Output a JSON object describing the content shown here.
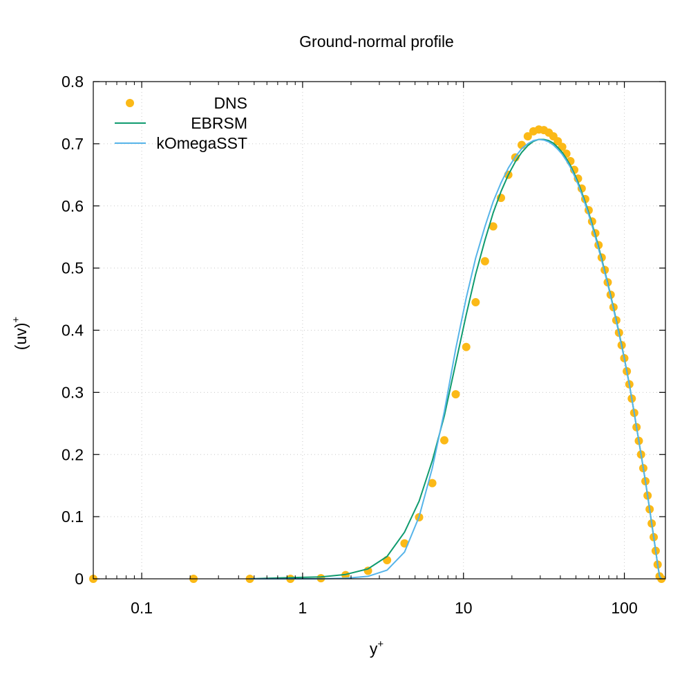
{
  "chart_data": {
    "type": "line",
    "title": "Ground-normal profile",
    "xlabel": "y",
    "xlabel_sup": "+",
    "ylabel": "(uv)",
    "ylabel_sup": "+",
    "x_scale": "log",
    "xlim": [
      0.05,
      180
    ],
    "ylim": [
      0,
      0.8
    ],
    "grid": true,
    "legend_position": "top-left",
    "x_major_ticks": [
      {
        "value": 0.1,
        "label": "0.1"
      },
      {
        "value": 1,
        "label": "1"
      },
      {
        "value": 10,
        "label": "10"
      },
      {
        "value": 100,
        "label": "100"
      }
    ],
    "y_ticks": [
      {
        "value": 0,
        "label": "0"
      },
      {
        "value": 0.1,
        "label": "0.1"
      },
      {
        "value": 0.2,
        "label": "0.2"
      },
      {
        "value": 0.3,
        "label": "0.3"
      },
      {
        "value": 0.4,
        "label": "0.4"
      },
      {
        "value": 0.5,
        "label": "0.5"
      },
      {
        "value": 0.6,
        "label": "0.6"
      },
      {
        "value": 0.7,
        "label": "0.7"
      },
      {
        "value": 0.8,
        "label": "0.8"
      }
    ],
    "series": [
      {
        "name": "DNS",
        "style": "points",
        "color": "#fbb917",
        "x": [
          0.05,
          0.21,
          0.47,
          0.84,
          1.3,
          1.85,
          2.55,
          3.35,
          4.3,
          5.3,
          6.4,
          7.6,
          8.95,
          10.4,
          11.9,
          13.6,
          15.3,
          17.1,
          19.0,
          21.0,
          23.0,
          25.1,
          27.2,
          29.4,
          31.6,
          33.9,
          36.2,
          38.6,
          41.1,
          43.6,
          46.2,
          48.8,
          51.5,
          54.3,
          57.1,
          60.0,
          63.0,
          66.0,
          69.1,
          72.3,
          75.5,
          78.8,
          82.2,
          85.6,
          89.1,
          92.6,
          96.2,
          99.9,
          103.6,
          107.4,
          111.2,
          115.1,
          119.0,
          123.0,
          127.0,
          131.1,
          135.2,
          139.4,
          143.6,
          147.9,
          152.2,
          156.6,
          161.0,
          165.5,
          170.0
        ],
        "y": [
          0.0,
          0.0,
          0.0,
          0.0,
          0.001,
          0.006,
          0.013,
          0.03,
          0.057,
          0.099,
          0.154,
          0.223,
          0.297,
          0.373,
          0.445,
          0.511,
          0.567,
          0.613,
          0.65,
          0.678,
          0.698,
          0.712,
          0.72,
          0.723,
          0.722,
          0.718,
          0.712,
          0.704,
          0.695,
          0.684,
          0.672,
          0.658,
          0.644,
          0.628,
          0.611,
          0.593,
          0.575,
          0.556,
          0.537,
          0.517,
          0.497,
          0.477,
          0.457,
          0.437,
          0.416,
          0.396,
          0.376,
          0.355,
          0.334,
          0.313,
          0.29,
          0.267,
          0.244,
          0.222,
          0.2,
          0.178,
          0.157,
          0.134,
          0.112,
          0.089,
          0.067,
          0.045,
          0.023,
          0.004,
          0.0
        ]
      },
      {
        "name": "EBRSM",
        "style": "line",
        "color": "#0f9b6e",
        "x": [
          0.47,
          0.84,
          1.3,
          1.85,
          2.55,
          3.35,
          4.3,
          5.3,
          6.4,
          7.6,
          8.95,
          10.4,
          11.9,
          13.6,
          15.3,
          17.1,
          19.0,
          21.0,
          23.0,
          25.1,
          27.2,
          29.4,
          31.6,
          33.9,
          36.2,
          38.6,
          41.1,
          43.6,
          46.2,
          48.8,
          51.5,
          54.3,
          57.1,
          60.0,
          63.0,
          66.0,
          69.1,
          72.3,
          75.5,
          78.8,
          82.2,
          85.6,
          89.1,
          92.6,
          96.2,
          99.9,
          103.6,
          107.4,
          111.2,
          115.1,
          119.0,
          123.0,
          127.0,
          131.1,
          135.2,
          139.4,
          143.6,
          147.9,
          152.2,
          156.6,
          161.0,
          165.5,
          170.0
        ],
        "y": [
          0.0,
          0.002,
          0.003,
          0.007,
          0.016,
          0.036,
          0.075,
          0.125,
          0.19,
          0.262,
          0.347,
          0.425,
          0.49,
          0.545,
          0.589,
          0.623,
          0.65,
          0.671,
          0.686,
          0.697,
          0.704,
          0.707,
          0.707,
          0.705,
          0.701,
          0.694,
          0.686,
          0.676,
          0.665,
          0.652,
          0.638,
          0.622,
          0.606,
          0.589,
          0.571,
          0.553,
          0.534,
          0.515,
          0.495,
          0.476,
          0.456,
          0.436,
          0.416,
          0.396,
          0.376,
          0.355,
          0.334,
          0.313,
          0.29,
          0.267,
          0.244,
          0.222,
          0.2,
          0.178,
          0.157,
          0.134,
          0.112,
          0.089,
          0.067,
          0.045,
          0.023,
          0.004,
          0.0
        ]
      },
      {
        "name": "kOmegaSST",
        "style": "line",
        "color": "#56b4e9",
        "x": [
          0.47,
          0.84,
          1.3,
          1.85,
          2.55,
          3.35,
          4.3,
          5.3,
          6.4,
          7.6,
          8.95,
          10.4,
          11.9,
          13.6,
          15.3,
          17.1,
          19.0,
          21.0,
          23.0,
          25.1,
          27.2,
          29.4,
          31.6,
          33.9,
          36.2,
          38.6,
          41.1,
          43.6,
          46.2,
          48.8,
          51.5,
          54.3,
          57.1,
          60.0,
          63.0,
          66.0,
          69.1,
          72.3,
          75.5,
          78.8,
          82.2,
          85.6,
          89.1,
          92.6,
          96.2,
          99.9,
          103.6,
          107.4,
          111.2,
          115.1,
          119.0,
          123.0,
          127.0,
          131.1,
          135.2,
          139.4,
          143.6,
          147.9,
          152.2,
          156.6,
          161.0,
          165.5,
          170.0
        ],
        "y": [
          0.0,
          0.0,
          0.0,
          0.001,
          0.004,
          0.014,
          0.043,
          0.1,
          0.178,
          0.269,
          0.37,
          0.452,
          0.516,
          0.567,
          0.607,
          0.637,
          0.661,
          0.679,
          0.692,
          0.7,
          0.705,
          0.707,
          0.706,
          0.703,
          0.698,
          0.691,
          0.683,
          0.673,
          0.662,
          0.649,
          0.635,
          0.619,
          0.603,
          0.586,
          0.568,
          0.55,
          0.531,
          0.512,
          0.493,
          0.474,
          0.454,
          0.434,
          0.414,
          0.394,
          0.374,
          0.354,
          0.333,
          0.312,
          0.29,
          0.267,
          0.244,
          0.222,
          0.2,
          0.178,
          0.157,
          0.134,
          0.112,
          0.089,
          0.067,
          0.045,
          0.023,
          0.004,
          0.0
        ]
      }
    ]
  }
}
